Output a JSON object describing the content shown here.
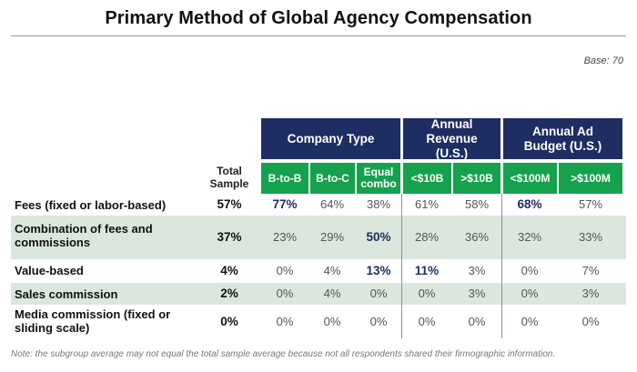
{
  "title": "Primary Method of Global Agency Compensation",
  "base": "Base: 70",
  "groups": [
    {
      "label": "Company Type"
    },
    {
      "label": "Annual Revenue (U.S.)"
    },
    {
      "label": "Annual Ad Budget (U.S.)"
    }
  ],
  "total_header": "Total Sample",
  "columns": [
    "B-to-B",
    "B-to-C",
    "Equal combo",
    "<$10B",
    ">$10B",
    "<$100M",
    ">$100M"
  ],
  "note": "Note: the subgroup average may not equal the total sample average because not all respondents shared their firmographic information.",
  "colors": {
    "header_navy": "#1e2e62",
    "header_green": "#16a14f",
    "row_shade": "#dbe6dc",
    "highlight": "#1e2e62"
  },
  "chart_data": {
    "type": "table",
    "title": "Primary Method of Global Agency Compensation",
    "column_groups": [
      {
        "name": "Company Type",
        "columns": [
          "B-to-B",
          "B-to-C",
          "Equal combo"
        ]
      },
      {
        "name": "Annual Revenue (U.S.)",
        "columns": [
          "<$10B",
          ">$10B"
        ]
      },
      {
        "name": "Annual Ad Budget (U.S.)",
        "columns": [
          "<$100M",
          ">$100M"
        ]
      }
    ],
    "rows": [
      {
        "label": "Fees (fixed or labor-based)",
        "total": "57%",
        "values": [
          "77%",
          "64%",
          "38%",
          "61%",
          "58%",
          "68%",
          "57%"
        ],
        "highlight": [
          true,
          false,
          false,
          false,
          false,
          true,
          false
        ]
      },
      {
        "label": "Combination of fees and commissions",
        "total": "37%",
        "values": [
          "23%",
          "29%",
          "50%",
          "28%",
          "36%",
          "32%",
          "33%"
        ],
        "highlight": [
          false,
          false,
          true,
          false,
          false,
          false,
          false
        ]
      },
      {
        "label": "Value-based",
        "total": "4%",
        "values": [
          "0%",
          "4%",
          "13%",
          "11%",
          "3%",
          "0%",
          "7%"
        ],
        "highlight": [
          false,
          false,
          true,
          true,
          false,
          false,
          false
        ]
      },
      {
        "label": "Sales commission",
        "total": "2%",
        "values": [
          "0%",
          "4%",
          "0%",
          "0%",
          "3%",
          "0%",
          "3%"
        ],
        "highlight": [
          false,
          false,
          false,
          false,
          false,
          false,
          false
        ]
      },
      {
        "label": "Media commission (fixed or sliding scale)",
        "total": "0%",
        "values": [
          "0%",
          "0%",
          "0%",
          "0%",
          "0%",
          "0%",
          "0%"
        ],
        "highlight": [
          false,
          false,
          false,
          false,
          false,
          false,
          false
        ]
      }
    ]
  }
}
